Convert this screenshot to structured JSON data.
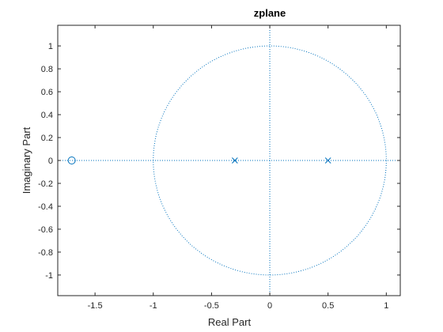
{
  "chart_data": {
    "type": "scatter",
    "title": "zplane",
    "xlabel": "Real Part",
    "ylabel": "Imaginary Part",
    "xlim": [
      -1.82,
      1.12
    ],
    "ylim": [
      -1.18,
      1.18
    ],
    "xticks": [
      -1.5,
      -1,
      -0.5,
      0,
      0.5,
      1
    ],
    "xtick_labels": [
      "-1.5",
      "-1",
      "-0.5",
      "0",
      "0.5",
      "1"
    ],
    "yticks": [
      1,
      0.8,
      0.6,
      0.4,
      0.2,
      0,
      -0.2,
      -0.4,
      -0.6,
      -0.8,
      -1
    ],
    "ytick_labels": [
      "1",
      "0.8",
      "0.6",
      "0.4",
      "0.2",
      "0",
      "-0.2",
      "-0.4",
      "-0.6",
      "-0.8",
      "-1"
    ],
    "zeros": [
      {
        "x": -1.7,
        "y": 0
      }
    ],
    "poles": [
      {
        "x": -0.3,
        "y": 0
      },
      {
        "x": 0.5,
        "y": 0
      }
    ],
    "unit_circle": {
      "radius": 1
    },
    "grid": false,
    "colors": {
      "marker": "#0072BD",
      "axes": "#262626",
      "background": "#ffffff"
    }
  }
}
